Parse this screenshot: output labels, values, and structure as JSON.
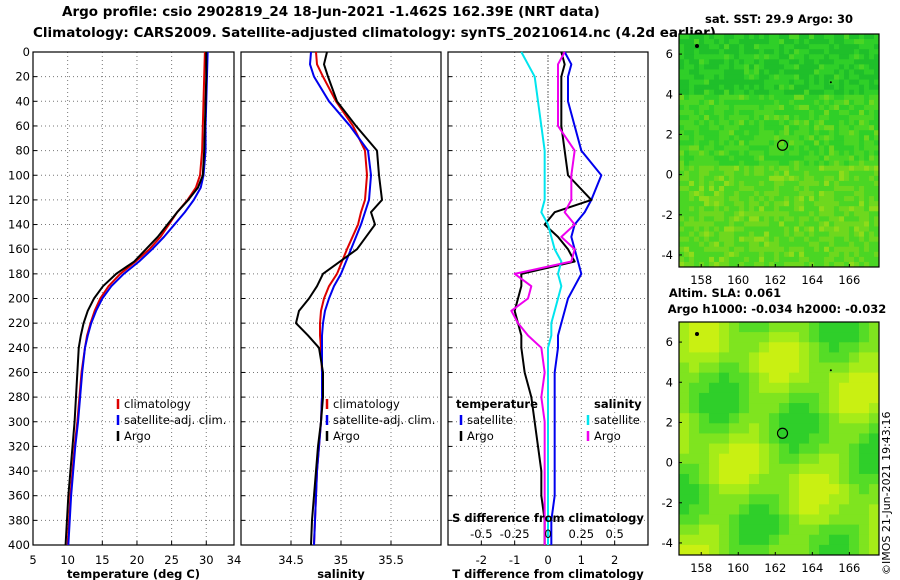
{
  "titles": {
    "line1": "Argo profile: csio 2902819_24 18-Jun-2021 -1.462S 162.39E (NRT data)",
    "line2": "Climatology: CARS2009. Satellite-adjusted climatology: synTS_20210614.nc (4.2d earlier)"
  },
  "credit": "©IMOS 21-Jun-2021 19:43:16",
  "colors": {
    "clim": "#dd0000",
    "sat": "#0000ee",
    "argo": "#000000",
    "sat_s": "#00e5ee",
    "s_diff": "#ee00ee"
  },
  "depth_ticks": [
    "0",
    "20",
    "40",
    "60",
    "80",
    "100",
    "120",
    "140",
    "160",
    "180",
    "200",
    "220",
    "240",
    "260",
    "280",
    "300",
    "320",
    "340",
    "360",
    "380",
    "400"
  ],
  "chart_data": [
    {
      "type": "line",
      "name": "temperature",
      "xlabel": "temperature (deg C)",
      "xlim": [
        5,
        34
      ],
      "ylim": [
        0,
        400
      ],
      "xticks": [
        "5",
        "10",
        "15",
        "20",
        "25",
        "30",
        "34"
      ],
      "xtick_values": [
        5,
        10,
        15,
        20,
        25,
        30,
        34
      ],
      "depth": [
        0,
        20,
        40,
        60,
        80,
        100,
        110,
        120,
        130,
        140,
        150,
        160,
        170,
        180,
        190,
        200,
        210,
        220,
        230,
        240,
        260,
        280,
        300,
        320,
        340,
        360,
        380,
        400
      ],
      "legend": [
        "climatology",
        "satellite-adj. clim.",
        "Argo"
      ],
      "series": [
        {
          "name": "climatology",
          "color": "clim",
          "values": [
            29.8,
            29.7,
            29.6,
            29.5,
            29.4,
            29.1,
            28.5,
            27.3,
            25.8,
            24.6,
            23.4,
            21.8,
            19.8,
            17.6,
            15.9,
            14.7,
            13.9,
            13.3,
            12.8,
            12.5,
            12.0,
            11.7,
            11.4,
            11.0,
            10.7,
            10.4,
            10.2,
            10.0
          ]
        },
        {
          "name": "satellite-adj. clim.",
          "color": "sat",
          "values": [
            30.2,
            30.1,
            30.0,
            29.9,
            29.9,
            29.6,
            29.2,
            28.2,
            26.9,
            25.4,
            23.9,
            22.2,
            20.3,
            18.1,
            16.3,
            15.0,
            14.1,
            13.4,
            12.9,
            12.5,
            12.1,
            11.8,
            11.5,
            11.1,
            10.8,
            10.5,
            10.3,
            10.1
          ]
        },
        {
          "name": "Argo",
          "color": "argo",
          "values": [
            30.0,
            30.0,
            29.9,
            29.8,
            29.7,
            29.5,
            28.8,
            27.4,
            25.8,
            24.4,
            23.0,
            21.3,
            19.6,
            17.0,
            15.1,
            13.8,
            12.9,
            12.3,
            11.9,
            11.6,
            11.4,
            11.2,
            11.0,
            10.7,
            10.4,
            10.1,
            9.9,
            9.7
          ]
        }
      ]
    },
    {
      "type": "line",
      "name": "salinity",
      "xlabel": "salinity",
      "xlim": [
        34,
        36.0
      ],
      "ylim": [
        0,
        400
      ],
      "xticks": [
        "34.5",
        "35",
        "35.5"
      ],
      "xtick_values": [
        34.5,
        35,
        35.5
      ],
      "depth": [
        0,
        10,
        20,
        40,
        60,
        80,
        100,
        120,
        130,
        140,
        160,
        180,
        190,
        200,
        210,
        220,
        230,
        240,
        260,
        280,
        300,
        320,
        340,
        360,
        380,
        400
      ],
      "legend": [
        "climatology",
        "satellite-adj. clim.",
        "Argo"
      ],
      "series": [
        {
          "name": "climatology",
          "color": "clim",
          "values": [
            34.75,
            34.76,
            34.82,
            34.95,
            35.12,
            35.24,
            35.26,
            35.24,
            35.2,
            35.17,
            35.06,
            34.96,
            34.88,
            34.83,
            34.8,
            34.79,
            34.79,
            34.8,
            34.81,
            34.81,
            34.8,
            34.78,
            34.76,
            34.75,
            34.74,
            34.73
          ]
        },
        {
          "name": "satellite-adj. clim.",
          "color": "sat",
          "values": [
            34.7,
            34.69,
            34.73,
            34.88,
            35.09,
            35.27,
            35.3,
            35.28,
            35.24,
            35.2,
            35.1,
            35.0,
            34.93,
            34.88,
            34.84,
            34.82,
            34.81,
            34.81,
            34.81,
            34.81,
            34.8,
            34.78,
            34.76,
            34.75,
            34.74,
            34.73
          ]
        },
        {
          "name": "Argo",
          "color": "argo",
          "values": [
            34.86,
            34.83,
            34.87,
            34.96,
            35.15,
            35.36,
            35.38,
            35.41,
            35.3,
            35.34,
            35.16,
            34.82,
            34.76,
            34.68,
            34.58,
            34.55,
            34.67,
            34.78,
            34.82,
            34.82,
            34.8,
            34.77,
            34.75,
            34.73,
            34.71,
            34.7
          ]
        }
      ]
    },
    {
      "type": "line",
      "name": "difference",
      "xlabel": "T difference from climatology",
      "xlim": [
        -3,
        3
      ],
      "ylim": [
        0,
        400
      ],
      "xticks": [
        "-2",
        "-1",
        "0",
        "1",
        "2"
      ],
      "xtick_values": [
        -2,
        -1,
        0,
        1,
        2
      ],
      "top_label": "S difference from climatology",
      "top_ticks": [
        "-0.5",
        "-0.25",
        "0",
        "0.25",
        "0.5"
      ],
      "top_tick_values": [
        -2,
        -1,
        0,
        1,
        2
      ],
      "legend_left_title": "temperature",
      "legend_right_title": "salinity",
      "legend_left": [
        "satellite",
        "Argo"
      ],
      "legend_right": [
        "satellite",
        "Argo"
      ],
      "depth": [
        0,
        10,
        20,
        40,
        60,
        80,
        100,
        120,
        130,
        140,
        150,
        160,
        170,
        180,
        190,
        200,
        210,
        220,
        230,
        240,
        260,
        280,
        300,
        320,
        340,
        360,
        380,
        400
      ],
      "series": [
        {
          "name": "temperature satellite",
          "color": "sat",
          "values": [
            0.5,
            0.7,
            0.6,
            0.6,
            0.8,
            1.0,
            1.6,
            1.3,
            1.1,
            0.8,
            0.7,
            0.8,
            0.9,
            1.0,
            0.8,
            0.6,
            0.5,
            0.4,
            0.3,
            0.3,
            0.2,
            0.2,
            0.2,
            0.2,
            0.2,
            0.2,
            0.1,
            0.1
          ]
        },
        {
          "name": "temperature Argo",
          "color": "argo",
          "values": [
            0.4,
            0.5,
            0.4,
            0.4,
            0.4,
            0.5,
            0.6,
            1.3,
            0.2,
            -0.1,
            0.3,
            0.6,
            0.8,
            -0.8,
            -0.8,
            -0.9,
            -1.0,
            -0.9,
            -0.8,
            -0.8,
            -0.7,
            -0.5,
            -0.4,
            -0.3,
            -0.2,
            -0.2,
            -0.1,
            -0.1
          ]
        },
        {
          "name": "salinity satellite",
          "color": "sat_s",
          "values": [
            -0.8,
            -0.6,
            -0.4,
            -0.3,
            -0.2,
            -0.1,
            -0.1,
            -0.1,
            -0.2,
            0.0,
            0.1,
            0.2,
            0.4,
            0.3,
            0.4,
            0.3,
            0.2,
            0.1,
            0.1,
            0.0,
            0.0,
            0.0,
            0.0,
            0.0,
            0.0,
            0.0,
            0.0,
            0.0
          ]
        },
        {
          "name": "salinity Argo",
          "color": "s_diff",
          "values": [
            0.5,
            0.3,
            0.3,
            0.3,
            0.3,
            0.8,
            0.7,
            0.7,
            0.5,
            0.8,
            0.4,
            0.8,
            0.7,
            -1.0,
            -0.5,
            -0.6,
            -1.1,
            -0.9,
            -0.6,
            -0.2,
            -0.1,
            -0.2,
            -0.1,
            -0.1,
            -0.1,
            -0.1,
            -0.1,
            -0.1
          ]
        }
      ]
    },
    {
      "type": "heatmap",
      "name": "sst",
      "title": "sat. SST: 29.9 Argo: 30",
      "xlim": [
        156.8,
        167.6
      ],
      "ylim": [
        -4.6,
        7.0
      ],
      "xticks": [
        "158",
        "160",
        "162",
        "164",
        "166"
      ],
      "xtick_values": [
        158,
        160,
        162,
        164,
        166
      ],
      "yticks": [
        "6",
        "4",
        "2",
        "0",
        "-2",
        "-4"
      ],
      "ytick_values": [
        6,
        4,
        2,
        0,
        -2,
        -4
      ],
      "argo_lon": 162.39,
      "argo_lat": 1.46,
      "palette": [
        "#1fbf2a",
        "#2fcf28",
        "#4ad624",
        "#6ed81e",
        "#8fdc1a"
      ]
    },
    {
      "type": "heatmap",
      "name": "sla",
      "title": "Altim. SLA: 0.061",
      "subtitle": "Argo h1000: -0.034 h2000: -0.032",
      "xlim": [
        156.8,
        167.6
      ],
      "ylim": [
        -4.6,
        7.0
      ],
      "xticks": [
        "158",
        "160",
        "162",
        "164",
        "166"
      ],
      "xtick_values": [
        158,
        160,
        162,
        164,
        166
      ],
      "yticks": [
        "6",
        "4",
        "2",
        "0",
        "-2",
        "-4"
      ],
      "ytick_values": [
        6,
        4,
        2,
        0,
        -2,
        -4
      ],
      "argo_lon": 162.39,
      "argo_lat": 1.46,
      "palette": [
        "#2fcf2a",
        "#55dc26",
        "#7fe41f",
        "#a6ec18",
        "#c9f012"
      ]
    }
  ]
}
